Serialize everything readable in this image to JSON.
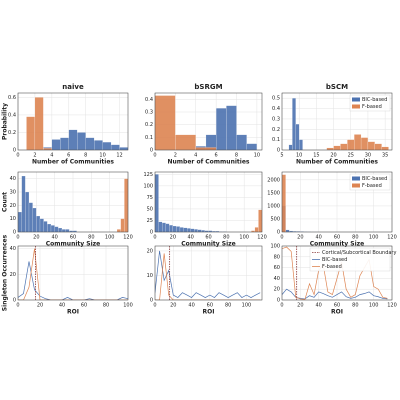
{
  "chart_data": [
    {
      "type": "histogram",
      "title": "naive",
      "xlabel": "Number of Communities",
      "ylabel": "Probability",
      "xlim": [
        0,
        13
      ],
      "xticks": [
        0,
        2,
        4,
        6,
        8,
        10,
        12
      ],
      "ylim": [
        0,
        0.65
      ],
      "yticks": [
        0,
        0.2,
        0.4,
        0.6
      ],
      "grid": true,
      "series": [
        {
          "name": "BIC-based",
          "color": "#4c72b0",
          "bins": [
            3,
            4,
            5,
            6,
            7,
            8,
            9,
            10,
            11,
            12,
            13
          ],
          "values": [
            0.03,
            0.12,
            0.14,
            0.23,
            0.2,
            0.14,
            0.11,
            0.09,
            0.06,
            0.03
          ]
        },
        {
          "name": "F-based",
          "color": "#dd8452",
          "bins": [
            1,
            2,
            3,
            4
          ],
          "values": [
            0.38,
            0.6,
            0.02
          ]
        }
      ]
    },
    {
      "type": "histogram",
      "title": "bSRGM",
      "xlabel": "Number of Communities",
      "xlim": [
        0,
        10.5
      ],
      "xticks": [
        0,
        2,
        4,
        6,
        8,
        10
      ],
      "ylim": [
        0,
        0.45
      ],
      "yticks": [
        0,
        0.1,
        0.2,
        0.3,
        0.4
      ],
      "grid": true,
      "series": [
        {
          "name": "BIC-based",
          "color": "#4c72b0",
          "bins": [
            4,
            5,
            6,
            7,
            8,
            9,
            10
          ],
          "values": [
            0.03,
            0.12,
            0.33,
            0.35,
            0.12,
            0.05
          ]
        },
        {
          "name": "F-based",
          "color": "#dd8452",
          "bins": [
            0,
            2,
            4,
            6
          ],
          "values": [
            0.43,
            0.12,
            0.02
          ]
        }
      ]
    },
    {
      "type": "histogram",
      "title": "bSCM",
      "xlabel": "Number of Communities",
      "legend": "upper right",
      "xlim": [
        5,
        37
      ],
      "xticks": [
        5,
        10,
        15,
        20,
        25,
        30,
        35
      ],
      "ylim": [
        0,
        0.55
      ],
      "yticks": [
        0,
        0.1,
        0.2,
        0.3,
        0.4,
        0.5
      ],
      "grid": true,
      "series": [
        {
          "name": "BIC-based",
          "color": "#4c72b0",
          "bins": [
            7,
            8,
            9,
            10,
            11
          ],
          "values": [
            0.05,
            0.5,
            0.25,
            0.1
          ]
        },
        {
          "name": "F-based",
          "color": "#dd8452",
          "bins": [
            18,
            20,
            22,
            24,
            26,
            28,
            30,
            32,
            34,
            36
          ],
          "values": [
            0.02,
            0.04,
            0.06,
            0.1,
            0.15,
            0.12,
            0.08,
            0.06,
            0.03
          ]
        }
      ]
    },
    {
      "type": "histogram",
      "xlabel": "Community Size",
      "ylabel": "Count",
      "xlim": [
        0,
        120
      ],
      "xticks": [
        0,
        20,
        40,
        60,
        80,
        100,
        120
      ],
      "ylim": [
        0,
        45
      ],
      "yticks": [
        0,
        10,
        20,
        30,
        40
      ],
      "grid": true,
      "series": [
        {
          "name": "BIC-based",
          "color": "#4c72b0",
          "bins": [
            0,
            4,
            8,
            12,
            16,
            20,
            24,
            28,
            32,
            36,
            40,
            44,
            48,
            52,
            56,
            60,
            64
          ],
          "values": [
            15,
            42,
            30,
            22,
            18,
            12,
            10,
            8,
            6,
            5,
            4,
            3,
            2,
            2,
            1,
            1
          ]
        },
        {
          "name": "F-based",
          "color": "#dd8452",
          "bins": [
            108,
            112,
            116,
            120
          ],
          "values": [
            2,
            10,
            40
          ]
        }
      ]
    },
    {
      "type": "histogram",
      "xlabel": "Community Size",
      "xlim": [
        0,
        120
      ],
      "xticks": [
        0,
        20,
        40,
        60,
        80,
        100,
        120
      ],
      "ylim": [
        0,
        130
      ],
      "yticks": [
        0,
        25,
        50,
        75,
        100,
        125
      ],
      "grid": true,
      "series": [
        {
          "name": "BIC-based",
          "color": "#4c72b0",
          "bins": [
            0,
            4,
            8,
            12,
            16,
            20,
            24,
            28,
            32,
            36,
            40,
            44,
            48,
            52,
            56,
            60,
            64,
            68,
            72,
            76,
            80
          ],
          "values": [
            125,
            22,
            20,
            18,
            15,
            13,
            12,
            10,
            9,
            8,
            7,
            6,
            5,
            4,
            3,
            3,
            2,
            2,
            1,
            1
          ]
        },
        {
          "name": "F-based",
          "color": "#dd8452",
          "bins": [
            108,
            112,
            116,
            120
          ],
          "values": [
            3,
            10,
            48
          ]
        }
      ]
    },
    {
      "type": "histogram",
      "xlabel": "Community Size",
      "legend": "upper right",
      "xlim": [
        0,
        120
      ],
      "xticks": [
        0,
        20,
        40,
        60,
        80,
        100,
        120
      ],
      "ylim": [
        0,
        2300
      ],
      "yticks": [
        0,
        500,
        1000,
        1500,
        2000
      ],
      "grid": true,
      "series": [
        {
          "name": "BIC-based",
          "color": "#4c72b0",
          "bins": [
            0,
            4,
            8,
            12,
            16,
            20,
            24,
            28,
            32,
            36,
            40
          ],
          "values": [
            1000,
            80,
            40,
            30,
            25,
            20,
            15,
            10,
            5,
            3
          ]
        },
        {
          "name": "F-based",
          "color": "#dd8452",
          "bins": [
            0,
            4
          ],
          "values": [
            2200
          ]
        }
      ]
    },
    {
      "type": "line",
      "xlabel": "ROI",
      "ylabel": "Singleton Occurrences",
      "boundary": 16,
      "xlim": [
        0,
        100
      ],
      "xticks": [
        0,
        20,
        40,
        60,
        80,
        100
      ],
      "ylim": [
        0,
        42
      ],
      "yticks": [
        0,
        20,
        40
      ],
      "grid": true,
      "x": [
        0,
        5,
        10,
        15,
        20,
        25,
        30,
        35,
        40,
        45,
        50,
        55,
        60,
        65,
        70,
        75,
        80,
        85,
        90,
        95,
        100
      ],
      "series": [
        {
          "name": "BIC-based",
          "color": "#4c72b0",
          "values": [
            2,
            5,
            30,
            8,
            3,
            1,
            0,
            0,
            0,
            2,
            0,
            0,
            0,
            1,
            0,
            0,
            0,
            0,
            0,
            2,
            1
          ]
        },
        {
          "name": "F-based",
          "color": "#dd8452",
          "values": [
            0,
            0,
            10,
            40,
            0,
            0,
            0,
            0,
            0,
            0,
            0,
            0,
            0,
            0,
            0,
            0,
            0,
            0,
            0,
            0,
            0
          ]
        }
      ]
    },
    {
      "type": "line",
      "xlabel": "ROI",
      "boundary": 16,
      "xlim": [
        0,
        117
      ],
      "xticks": [
        0,
        20,
        40,
        60,
        80,
        100
      ],
      "ylim": [
        0,
        22
      ],
      "yticks": [
        0,
        10,
        20
      ],
      "grid": true,
      "x": [
        0,
        5,
        10,
        15,
        20,
        25,
        30,
        35,
        40,
        45,
        50,
        55,
        60,
        65,
        70,
        75,
        80,
        85,
        90,
        95,
        100,
        105,
        110,
        115
      ],
      "series": [
        {
          "name": "BIC-based",
          "color": "#4c72b0",
          "values": [
            3,
            20,
            8,
            12,
            2,
            1,
            3,
            2,
            1,
            3,
            2,
            1,
            2,
            1,
            3,
            2,
            1,
            2,
            3,
            1,
            2,
            1,
            2,
            3
          ]
        },
        {
          "name": "F-based",
          "color": "#dd8452",
          "values": [
            0,
            0,
            19,
            2,
            0,
            0,
            0,
            0,
            0,
            0,
            0,
            0,
            0,
            0,
            0,
            0,
            0,
            0,
            0,
            0,
            0,
            0,
            0,
            0
          ]
        }
      ]
    },
    {
      "type": "line",
      "xlabel": "ROI",
      "boundary": 16,
      "boundary_label": "Cortical/Subcortical Boundary",
      "legend": "upper right",
      "xlim": [
        0,
        120
      ],
      "xticks": [
        0,
        20,
        40,
        60,
        80,
        100,
        120
      ],
      "ylim": [
        0,
        100
      ],
      "yticks": [
        0,
        20,
        40,
        60,
        80,
        100
      ],
      "grid": true,
      "x": [
        0,
        5,
        10,
        15,
        20,
        25,
        30,
        35,
        40,
        45,
        50,
        55,
        60,
        65,
        70,
        75,
        80,
        85,
        90,
        95,
        100,
        105,
        110,
        115
      ],
      "series": [
        {
          "name": "BIC-based",
          "color": "#4c72b0",
          "values": [
            10,
            20,
            15,
            5,
            3,
            2,
            8,
            5,
            15,
            12,
            8,
            5,
            10,
            15,
            6,
            3,
            5,
            10,
            12,
            15,
            8,
            6,
            3,
            2
          ]
        },
        {
          "name": "F-based",
          "color": "#dd8452",
          "values": [
            95,
            98,
            90,
            5,
            2,
            1,
            30,
            10,
            55,
            65,
            15,
            10,
            40,
            70,
            20,
            5,
            10,
            45,
            60,
            75,
            25,
            20,
            5,
            3
          ]
        }
      ]
    }
  ]
}
